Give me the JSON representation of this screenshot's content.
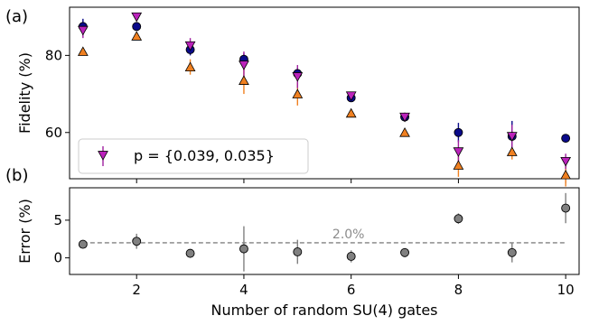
{
  "chart_data": [
    {
      "panel_label": "(a)",
      "type": "scatter",
      "ylabel": "Fidelity (%)",
      "xlim": [
        0.75,
        10.25
      ],
      "ylim": [
        48,
        92.5
      ],
      "yticks": [
        60,
        80
      ],
      "x": [
        1,
        2,
        3,
        4,
        5,
        6,
        7,
        8,
        9,
        10
      ],
      "legend": {
        "label": "p = {0.039, 0.035}",
        "placement": "lower-left"
      },
      "series": [
        {
          "marker": "circle",
          "color": "#0a0a8a",
          "values": [
            87.5,
            87.5,
            81.5,
            79,
            75.3,
            69,
            64,
            60,
            59,
            58.5
          ],
          "errors": [
            2,
            0.8,
            1.5,
            1.5,
            1.5,
            1,
            0.8,
            2.5,
            4,
            0.5
          ]
        },
        {
          "marker": "triangle-down",
          "color": "#bb22bb",
          "errorcolor": "#a020a0",
          "values": [
            86.5,
            90,
            82.5,
            77.5,
            74.5,
            69.5,
            64,
            55,
            59,
            52.5
          ],
          "errors": [
            2,
            0.8,
            2,
            3.5,
            3,
            1,
            1,
            3,
            3,
            2
          ]
        },
        {
          "marker": "triangle-up",
          "color": "#f08020",
          "values": [
            81,
            85,
            77,
            73.5,
            70,
            65,
            60,
            51.5,
            55,
            49
          ],
          "errors": [
            0.5,
            0.5,
            2,
            3.5,
            3,
            0.5,
            0.5,
            3,
            2,
            3
          ]
        }
      ]
    },
    {
      "panel_label": "(b)",
      "type": "scatter",
      "ylabel": "Error (%)",
      "xlabel": "Number of random SU(4) gates",
      "xlim": [
        0.75,
        10.25
      ],
      "ylim": [
        -2.2,
        9.3
      ],
      "yticks": [
        0,
        5
      ],
      "xticks": [
        2,
        4,
        6,
        8,
        10
      ],
      "x": [
        1,
        2,
        3,
        4,
        5,
        6,
        7,
        8,
        9,
        10
      ],
      "values": [
        1.8,
        2.2,
        0.6,
        1.2,
        0.8,
        0.2,
        0.7,
        5.2,
        0.7,
        6.6
      ],
      "errors": [
        0.3,
        1.0,
        0.3,
        3.0,
        1.6,
        0.8,
        0.6,
        0.7,
        1.3,
        2.0
      ],
      "color": "#808080",
      "reference_line": {
        "y": 2.0,
        "label": "2.0%",
        "style": "dashed",
        "color": "#666666"
      }
    }
  ]
}
